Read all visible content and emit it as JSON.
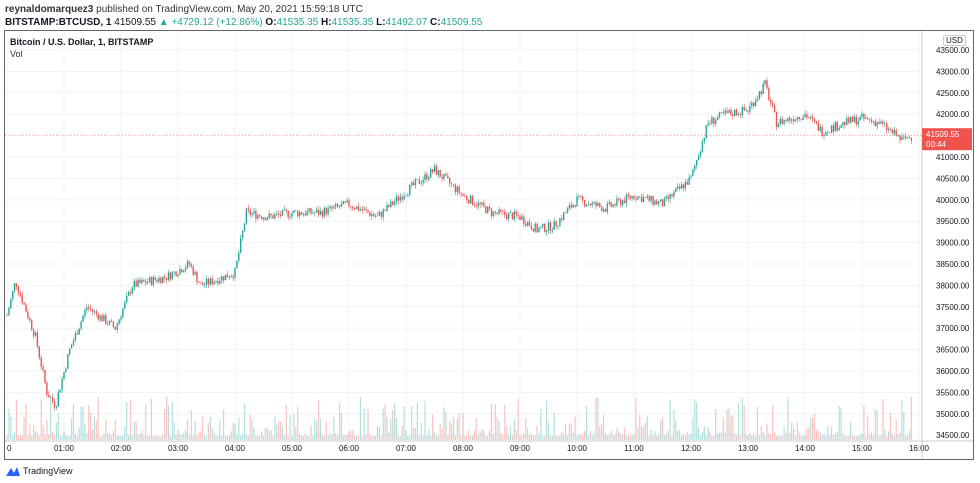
{
  "header": {
    "author": "reynaldomarquez3",
    "published": "published on TradingView.com, May 20, 2021 15:59:18 UTC",
    "symbol": "BITSTAMP:BTCUSD, 1",
    "last": "41509.55",
    "change": "+4729.12 (+12.86%)",
    "o_label": "O:",
    "o": "41535.35",
    "h_label": "H:",
    "h": "41535.35",
    "l_label": "L:",
    "l": "41492.07",
    "c_label": "C:",
    "c": "41509.55"
  },
  "colors": {
    "up": "#26a69a",
    "down": "#ef5350",
    "grid": "#f0f3fa"
  },
  "chart_data": {
    "type": "candlestick",
    "title": "Bitcoin / U.S. Dollar, 1, BITSTAMP",
    "volume_label": "Vol",
    "currency": "USD",
    "y_ticks": [
      43500,
      43000,
      42500,
      42000,
      41000,
      40500,
      40000,
      39500,
      39000,
      38500,
      38000,
      37500,
      37000,
      36500,
      36000,
      35500,
      35000,
      34500
    ],
    "ylim": [
      34500,
      43500
    ],
    "x_ticks": [
      "0",
      "01:00",
      "02:00",
      "03:00",
      "04:00",
      "05:00",
      "06:00",
      "07:00",
      "08:00",
      "09:00",
      "10:00",
      "11:00",
      "12:00",
      "13:00",
      "14:00",
      "15:00",
      "16:00"
    ],
    "last_price": "41509.55",
    "countdown": "00:44",
    "price_path": [
      [
        0,
        37300
      ],
      [
        0.15,
        38100
      ],
      [
        0.5,
        36800
      ],
      [
        0.7,
        35500
      ],
      [
        0.85,
        35200
      ],
      [
        1.1,
        36500
      ],
      [
        1.4,
        37500
      ],
      [
        1.9,
        37000
      ],
      [
        2.2,
        38000
      ],
      [
        2.8,
        38200
      ],
      [
        3.2,
        38500
      ],
      [
        3.4,
        38000
      ],
      [
        4.0,
        38300
      ],
      [
        4.2,
        39700
      ],
      [
        4.6,
        39600
      ],
      [
        5.0,
        39700
      ],
      [
        5.5,
        39700
      ],
      [
        6.0,
        39900
      ],
      [
        6.5,
        39600
      ],
      [
        7.0,
        40200
      ],
      [
        7.5,
        40700
      ],
      [
        8.0,
        40100
      ],
      [
        8.5,
        39700
      ],
      [
        9.0,
        39600
      ],
      [
        9.3,
        39300
      ],
      [
        9.6,
        39400
      ],
      [
        10.0,
        40000
      ],
      [
        10.5,
        39800
      ],
      [
        11.0,
        40100
      ],
      [
        11.5,
        39900
      ],
      [
        12.0,
        40500
      ],
      [
        12.3,
        41800
      ],
      [
        12.6,
        42000
      ],
      [
        13.0,
        42100
      ],
      [
        13.3,
        42700
      ],
      [
        13.5,
        41800
      ],
      [
        14.0,
        42000
      ],
      [
        14.3,
        41600
      ],
      [
        14.7,
        41800
      ],
      [
        15.0,
        41900
      ],
      [
        15.3,
        41800
      ],
      [
        15.7,
        41400
      ],
      [
        15.9,
        41500
      ]
    ]
  },
  "footer": {
    "brand": "TradingView"
  }
}
